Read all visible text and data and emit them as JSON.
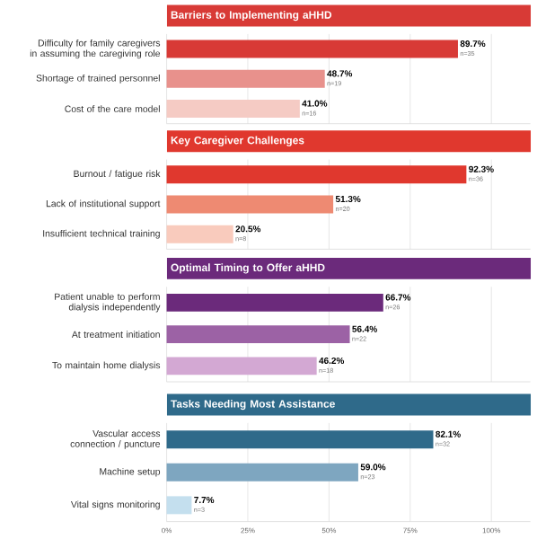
{
  "chart_data": [
    {
      "type": "bar",
      "orientation": "horizontal",
      "title": "Barriers to Implementing aHHD",
      "categories": [
        "Difficulty for family caregivers in assuming the caregiving role",
        "Shortage of trained personnel",
        "Cost of the care model"
      ],
      "values": [
        89.7,
        48.7,
        41.0
      ],
      "colors": [
        "#d83a36",
        "#e8918c",
        "#f5cbc4"
      ],
      "value_labels": [
        "89.7%",
        "48.7%",
        "41.0%"
      ],
      "annotations": [
        {
          "text": "n=35",
          "x": 89.7,
          "y": "Difficulty for family caregivers in assuming the caregiving role"
        },
        {
          "text": "n=19",
          "x": 48.7,
          "y": "Shortage of trained personnel"
        },
        {
          "text": "n=16",
          "x": 41.0,
          "y": "Cost of the care model"
        }
      ],
      "xlim": [
        0,
        112
      ],
      "xticks": [
        {
          "value": 0,
          "label": null
        },
        {
          "value": 25,
          "label": null
        },
        {
          "value": 50,
          "label": null
        },
        {
          "value": 75,
          "label": null
        },
        {
          "value": 100,
          "label": null
        }
      ],
      "grid": "x"
    },
    {
      "type": "bar",
      "orientation": "horizontal",
      "title": "Key Caregiver Challenges",
      "categories": [
        "Burnout / fatigue risk",
        "Lack of institutional support",
        "Insufficient technical training"
      ],
      "values": [
        92.3,
        51.3,
        20.5
      ],
      "colors": [
        "#e0382e",
        "#ee8a72",
        "#f9cbbd"
      ],
      "value_labels": [
        "92.3%",
        "51.3%",
        "20.5%"
      ],
      "annotations": [
        {
          "text": "n=36",
          "x": 92.3,
          "y": "Burnout / fatigue risk"
        },
        {
          "text": "n=20",
          "x": 51.3,
          "y": "Lack of institutional support"
        },
        {
          "text": "n=8",
          "x": 20.5,
          "y": "Insufficient technical training"
        }
      ],
      "xlim": [
        0,
        112
      ],
      "xticks": [
        {
          "value": 0,
          "label": null
        },
        {
          "value": 25,
          "label": null
        },
        {
          "value": 50,
          "label": null
        },
        {
          "value": 75,
          "label": null
        },
        {
          "value": 100,
          "label": null
        }
      ],
      "grid": "x"
    },
    {
      "type": "bar",
      "orientation": "horizontal",
      "title": "Optimal Timing to Offer aHHD",
      "categories": [
        "Patient unable to perform dialysis independently",
        "At treatment initiation",
        "To maintain home dialysis"
      ],
      "values": [
        66.7,
        56.4,
        46.2
      ],
      "colors": [
        "#6b2a7b",
        "#9c62a5",
        "#d3a8d3"
      ],
      "value_labels": [
        "66.7%",
        "56.4%",
        "46.2%"
      ],
      "annotations": [
        {
          "text": "n=26",
          "x": 66.7,
          "y": "Patient unable to perform dialysis independently"
        },
        {
          "text": "n=22",
          "x": 56.4,
          "y": "At treatment initiation"
        },
        {
          "text": "n=18",
          "x": 46.2,
          "y": "To maintain home dialysis"
        }
      ],
      "xlim": [
        0,
        112
      ],
      "xticks": [
        {
          "value": 0,
          "label": null
        },
        {
          "value": 25,
          "label": null
        },
        {
          "value": 50,
          "label": null
        },
        {
          "value": 75,
          "label": null
        },
        {
          "value": 100,
          "label": null
        }
      ],
      "grid": "x"
    },
    {
      "type": "bar",
      "orientation": "horizontal",
      "title": "Tasks Needing Most Assistance",
      "categories": [
        "Vascular access connection / puncture",
        "Machine setup",
        "Vital signs monitoring"
      ],
      "values": [
        82.1,
        59.0,
        7.7
      ],
      "colors": [
        "#2f6a8a",
        "#7ea6c0",
        "#c4dfee"
      ],
      "value_labels": [
        "82.1%",
        "59.0%",
        "7.7%"
      ],
      "annotations": [
        {
          "text": "n=32",
          "x": 82.1,
          "y": "Vascular access connection / puncture"
        },
        {
          "text": "n=23",
          "x": 59.0,
          "y": "Machine setup"
        },
        {
          "text": "n=3",
          "x": 7.7,
          "y": "Vital signs monitoring"
        }
      ],
      "xlim": [
        0,
        112
      ],
      "xticks": [
        {
          "value": 0,
          "label": "0%"
        },
        {
          "value": 25,
          "label": "25%"
        },
        {
          "value": 50,
          "label": "50%"
        },
        {
          "value": 75,
          "label": "75%"
        },
        {
          "value": 100,
          "label": "100%"
        }
      ],
      "grid": "x"
    }
  ]
}
